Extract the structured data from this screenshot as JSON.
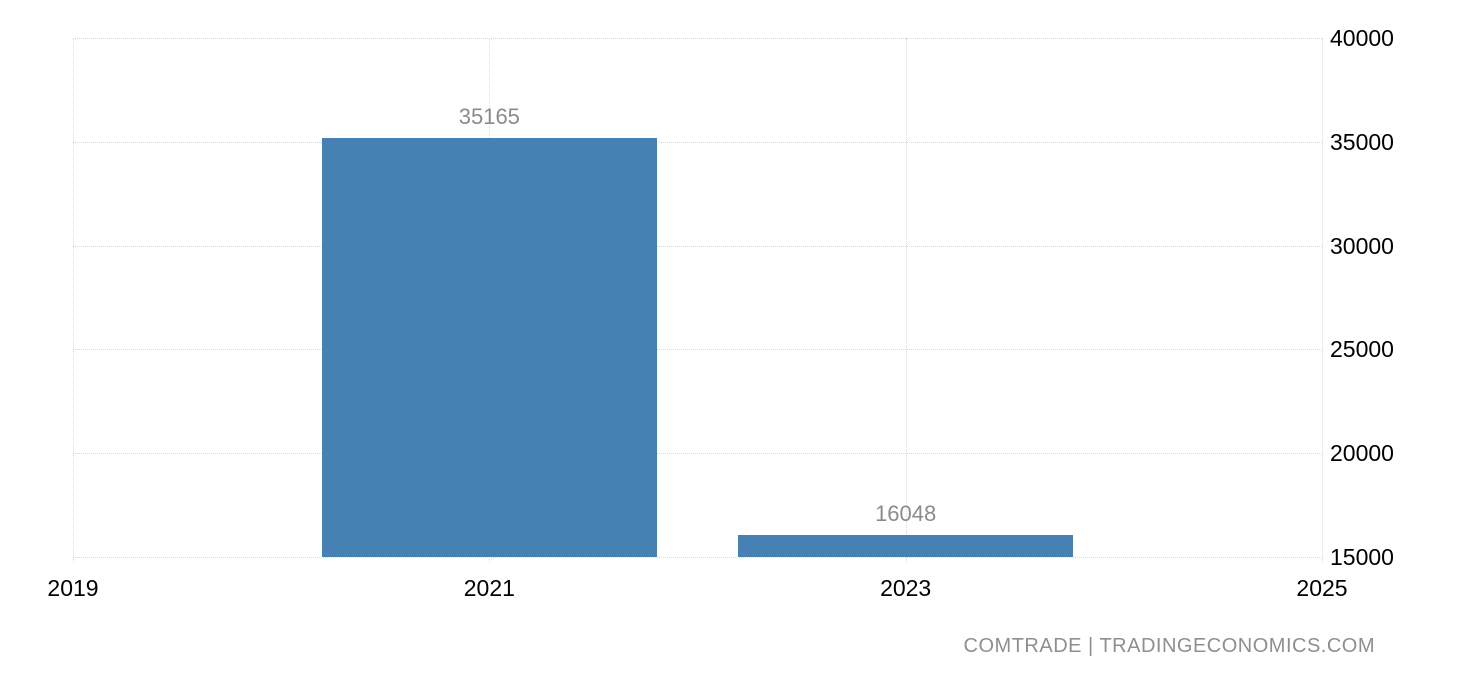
{
  "chart_data": {
    "type": "bar",
    "x": [
      2021,
      2023
    ],
    "values": [
      35165,
      16048
    ],
    "bar_labels": [
      "35165",
      "16048"
    ],
    "title": "",
    "xlabel": "",
    "ylabel": "",
    "x_ticks": [
      "2019",
      "2021",
      "2023",
      "2025"
    ],
    "y_ticks": [
      "40000",
      "35000",
      "30000",
      "25000",
      "20000",
      "15000"
    ],
    "xlim": [
      2019,
      2025
    ],
    "ylim": [
      15000,
      40000
    ],
    "grid": true,
    "legend_position": "none",
    "y_axis_side": "right",
    "bar_color": "#4681b4",
    "grid_color": "#d9d9d9",
    "axis_text_color": "#000000",
    "value_label_color": "#8b8b8b"
  },
  "watermark": {
    "text": "COMTRADE | TRADINGECONOMICS.COM",
    "color": "#8f8f8f"
  }
}
